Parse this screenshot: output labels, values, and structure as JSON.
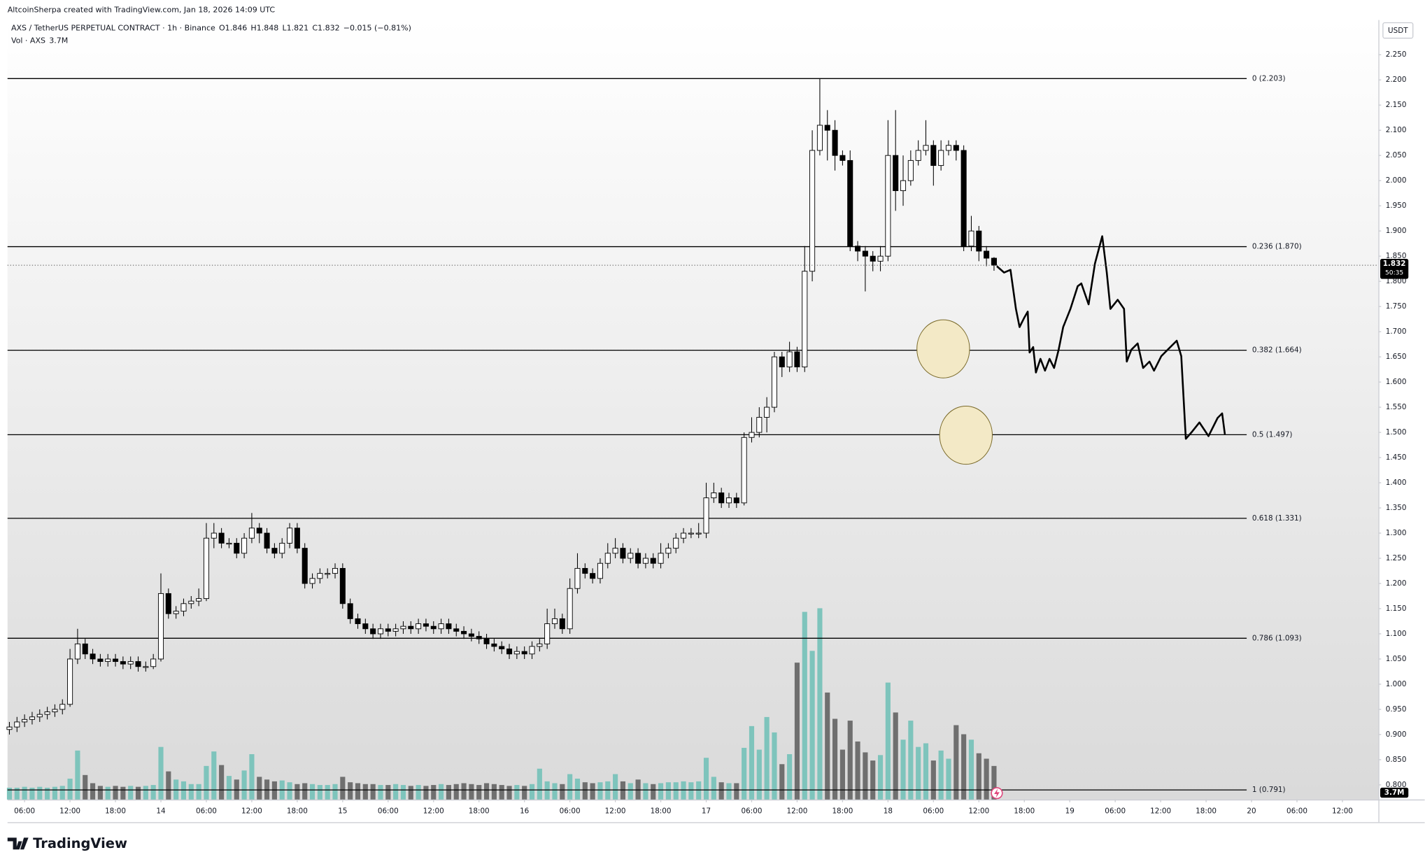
{
  "credit": "AltcoinSherpa created with TradingView.com, Jan 18, 2026 14:09 UTC",
  "brand": "TradingView",
  "chart_data": {
    "type": "candlestick",
    "title": "AXS / TetherUS PERPETUAL CONTRACT · 1h · Binance",
    "ohlc_prefixes": [
      "O",
      "H",
      "L",
      "C"
    ],
    "change": "−0.015 (−0.81%)",
    "volume_title": "Vol · AXS",
    "last_volume_label": "3.7M",
    "currency": "USDT",
    "countdown": "50:35",
    "up_color": "#ffffff",
    "down_color": "#000000",
    "outline_color": "#000000",
    "volume_up_color": "#7ec4bc",
    "volume_down_color": "#6f6f6f",
    "x": [
      "13 04:00",
      "13 05:00",
      "13 06:00",
      "13 07:00",
      "13 08:00",
      "13 09:00",
      "13 10:00",
      "13 11:00",
      "13 12:00",
      "13 13:00",
      "13 14:00",
      "13 15:00",
      "13 16:00",
      "13 17:00",
      "13 18:00",
      "13 19:00",
      "13 20:00",
      "13 21:00",
      "13 22:00",
      "13 23:00",
      "14 00:00",
      "14 01:00",
      "14 02:00",
      "14 03:00",
      "14 04:00",
      "14 05:00",
      "14 06:00",
      "14 07:00",
      "14 08:00",
      "14 09:00",
      "14 10:00",
      "14 11:00",
      "14 12:00",
      "14 13:00",
      "14 14:00",
      "14 15:00",
      "14 16:00",
      "14 17:00",
      "14 18:00",
      "14 19:00",
      "14 20:00",
      "14 21:00",
      "14 22:00",
      "14 23:00",
      "15 00:00",
      "15 01:00",
      "15 02:00",
      "15 03:00",
      "15 04:00",
      "15 05:00",
      "15 06:00",
      "15 07:00",
      "15 08:00",
      "15 09:00",
      "15 10:00",
      "15 11:00",
      "15 12:00",
      "15 13:00",
      "15 14:00",
      "15 15:00",
      "15 16:00",
      "15 17:00",
      "15 18:00",
      "15 19:00",
      "15 20:00",
      "15 21:00",
      "15 22:00",
      "15 23:00",
      "16 00:00",
      "16 01:00",
      "16 02:00",
      "16 03:00",
      "16 04:00",
      "16 05:00",
      "16 06:00",
      "16 07:00",
      "16 08:00",
      "16 09:00",
      "16 10:00",
      "16 11:00",
      "16 12:00",
      "16 13:00",
      "16 14:00",
      "16 15:00",
      "16 16:00",
      "16 17:00",
      "16 18:00",
      "16 19:00",
      "16 20:00",
      "16 21:00",
      "16 22:00",
      "16 23:00",
      "17 00:00",
      "17 01:00",
      "17 02:00",
      "17 03:00",
      "17 04:00",
      "17 05:00",
      "17 06:00",
      "17 07:00",
      "17 08:00",
      "17 09:00",
      "17 10:00",
      "17 11:00",
      "17 12:00",
      "17 13:00",
      "17 14:00",
      "17 15:00",
      "17 16:00",
      "17 17:00",
      "17 18:00",
      "17 19:00",
      "17 20:00",
      "17 21:00",
      "17 22:00",
      "17 23:00",
      "18 00:00",
      "18 01:00",
      "18 02:00",
      "18 03:00",
      "18 04:00",
      "18 05:00",
      "18 06:00",
      "18 07:00",
      "18 08:00",
      "18 09:00",
      "18 10:00",
      "18 11:00",
      "18 12:00",
      "18 13:00",
      "18 14:00"
    ],
    "open": [
      0.91,
      0.915,
      0.925,
      0.93,
      0.935,
      0.94,
      0.945,
      0.95,
      0.96,
      1.05,
      1.08,
      1.06,
      1.05,
      1.045,
      1.05,
      1.045,
      1.04,
      1.045,
      1.035,
      1.035,
      1.05,
      1.18,
      1.14,
      1.145,
      1.16,
      1.165,
      1.17,
      1.29,
      1.3,
      1.28,
      1.28,
      1.26,
      1.29,
      1.31,
      1.3,
      1.27,
      1.26,
      1.28,
      1.31,
      1.27,
      1.2,
      1.21,
      1.22,
      1.22,
      1.23,
      1.16,
      1.13,
      1.12,
      1.11,
      1.1,
      1.11,
      1.105,
      1.11,
      1.115,
      1.11,
      1.12,
      1.115,
      1.11,
      1.12,
      1.11,
      1.105,
      1.1,
      1.095,
      1.09,
      1.08,
      1.075,
      1.07,
      1.06,
      1.065,
      1.06,
      1.075,
      1.08,
      1.12,
      1.13,
      1.11,
      1.19,
      1.23,
      1.22,
      1.21,
      1.24,
      1.26,
      1.27,
      1.25,
      1.26,
      1.24,
      1.25,
      1.24,
      1.26,
      1.27,
      1.29,
      1.3,
      1.3,
      1.3,
      1.37,
      1.38,
      1.36,
      1.37,
      1.36,
      1.49,
      1.5,
      1.53,
      1.55,
      1.65,
      1.63,
      1.66,
      1.63,
      1.82,
      2.06,
      2.11,
      2.1,
      2.05,
      2.04,
      1.87,
      1.86,
      1.85,
      1.84,
      1.85,
      2.05,
      1.98,
      2.0,
      2.04,
      2.06,
      2.07,
      2.03,
      2.06,
      2.07,
      2.06,
      1.87,
      1.9,
      1.86,
      1.846
    ],
    "high": [
      0.925,
      0.935,
      0.94,
      0.945,
      0.95,
      0.955,
      0.96,
      0.97,
      1.07,
      1.11,
      1.09,
      1.07,
      1.06,
      1.06,
      1.06,
      1.055,
      1.055,
      1.055,
      1.045,
      1.06,
      1.22,
      1.19,
      1.155,
      1.17,
      1.175,
      1.19,
      1.32,
      1.32,
      1.31,
      1.29,
      1.29,
      1.3,
      1.34,
      1.32,
      1.31,
      1.28,
      1.29,
      1.32,
      1.32,
      1.28,
      1.22,
      1.23,
      1.23,
      1.24,
      1.24,
      1.17,
      1.14,
      1.13,
      1.12,
      1.12,
      1.12,
      1.12,
      1.125,
      1.125,
      1.13,
      1.13,
      1.125,
      1.13,
      1.13,
      1.12,
      1.115,
      1.11,
      1.105,
      1.1,
      1.09,
      1.085,
      1.08,
      1.075,
      1.075,
      1.085,
      1.09,
      1.15,
      1.15,
      1.14,
      1.21,
      1.26,
      1.24,
      1.23,
      1.25,
      1.28,
      1.29,
      1.28,
      1.27,
      1.27,
      1.26,
      1.26,
      1.28,
      1.28,
      1.3,
      1.31,
      1.31,
      1.32,
      1.4,
      1.4,
      1.39,
      1.38,
      1.38,
      1.5,
      1.53,
      1.55,
      1.57,
      1.66,
      1.66,
      1.68,
      1.67,
      1.87,
      2.1,
      2.203,
      2.14,
      2.12,
      2.06,
      2.06,
      1.88,
      1.87,
      1.86,
      1.87,
      2.12,
      2.14,
      2.05,
      2.06,
      2.08,
      2.12,
      2.08,
      2.08,
      2.08,
      2.08,
      2.07,
      1.93,
      1.91,
      1.87,
      1.848
    ],
    "low": [
      0.9,
      0.905,
      0.915,
      0.92,
      0.925,
      0.93,
      0.935,
      0.94,
      0.955,
      1.04,
      1.05,
      1.04,
      1.035,
      1.035,
      1.035,
      1.03,
      1.03,
      1.025,
      1.025,
      1.03,
      1.045,
      1.13,
      1.13,
      1.135,
      1.15,
      1.155,
      1.165,
      1.27,
      1.27,
      1.27,
      1.25,
      1.25,
      1.28,
      1.28,
      1.26,
      1.25,
      1.25,
      1.27,
      1.26,
      1.19,
      1.19,
      1.2,
      1.21,
      1.21,
      1.15,
      1.12,
      1.11,
      1.1,
      1.09,
      1.09,
      1.095,
      1.095,
      1.1,
      1.1,
      1.1,
      1.105,
      1.1,
      1.1,
      1.1,
      1.095,
      1.09,
      1.085,
      1.08,
      1.07,
      1.065,
      1.06,
      1.05,
      1.05,
      1.05,
      1.05,
      1.065,
      1.07,
      1.11,
      1.1,
      1.1,
      1.18,
      1.21,
      1.2,
      1.2,
      1.23,
      1.25,
      1.24,
      1.24,
      1.23,
      1.23,
      1.23,
      1.23,
      1.25,
      1.26,
      1.28,
      1.29,
      1.29,
      1.29,
      1.36,
      1.35,
      1.35,
      1.35,
      1.355,
      1.48,
      1.49,
      1.5,
      1.54,
      1.61,
      1.62,
      1.62,
      1.62,
      1.8,
      2.05,
      2.04,
      2.02,
      2.03,
      1.86,
      1.84,
      1.78,
      1.82,
      1.82,
      1.84,
      1.94,
      1.95,
      1.99,
      2.03,
      2.05,
      1.99,
      2.02,
      2.05,
      2.04,
      1.86,
      1.86,
      1.84,
      1.83,
      1.821
    ],
    "close": [
      0.915,
      0.925,
      0.93,
      0.935,
      0.94,
      0.945,
      0.95,
      0.96,
      1.05,
      1.08,
      1.06,
      1.05,
      1.045,
      1.05,
      1.045,
      1.04,
      1.045,
      1.035,
      1.035,
      1.05,
      1.18,
      1.14,
      1.145,
      1.16,
      1.165,
      1.17,
      1.29,
      1.3,
      1.28,
      1.28,
      1.26,
      1.29,
      1.31,
      1.3,
      1.27,
      1.26,
      1.28,
      1.31,
      1.27,
      1.2,
      1.21,
      1.22,
      1.22,
      1.23,
      1.16,
      1.13,
      1.12,
      1.11,
      1.1,
      1.11,
      1.105,
      1.11,
      1.115,
      1.11,
      1.12,
      1.115,
      1.11,
      1.12,
      1.11,
      1.105,
      1.1,
      1.095,
      1.09,
      1.08,
      1.075,
      1.07,
      1.06,
      1.065,
      1.06,
      1.075,
      1.08,
      1.12,
      1.13,
      1.11,
      1.19,
      1.23,
      1.22,
      1.21,
      1.24,
      1.26,
      1.27,
      1.25,
      1.26,
      1.24,
      1.25,
      1.24,
      1.26,
      1.27,
      1.29,
      1.3,
      1.3,
      1.3,
      1.37,
      1.38,
      1.36,
      1.37,
      1.36,
      1.49,
      1.5,
      1.53,
      1.55,
      1.65,
      1.63,
      1.66,
      1.63,
      1.82,
      2.06,
      2.11,
      2.1,
      2.05,
      2.04,
      1.87,
      1.86,
      1.85,
      1.84,
      1.85,
      2.05,
      1.98,
      2.0,
      2.04,
      2.06,
      2.07,
      2.03,
      2.06,
      2.07,
      2.06,
      1.87,
      1.9,
      1.86,
      1.846,
      1.832
    ],
    "volume": [
      1.3,
      1.3,
      1.4,
      1.3,
      1.4,
      1.3,
      1.4,
      1.5,
      2.3,
      5.4,
      2.7,
      1.8,
      1.5,
      1.4,
      1.5,
      1.4,
      1.5,
      1.4,
      1.5,
      1.6,
      5.8,
      3.1,
      2.2,
      2.0,
      1.7,
      1.7,
      3.7,
      5.3,
      3.8,
      2.6,
      2.2,
      3.2,
      5.0,
      2.5,
      2.2,
      2.0,
      2.1,
      1.9,
      1.7,
      1.8,
      1.7,
      1.6,
      1.6,
      1.7,
      2.5,
      1.9,
      1.8,
      1.7,
      1.7,
      1.6,
      1.6,
      1.7,
      1.6,
      1.5,
      1.6,
      1.5,
      1.6,
      1.7,
      1.6,
      1.7,
      1.8,
      1.7,
      1.6,
      1.8,
      1.7,
      1.6,
      1.5,
      1.6,
      1.5,
      1.7,
      3.4,
      2.0,
      1.8,
      1.7,
      2.8,
      2.3,
      1.9,
      1.8,
      1.9,
      2.0,
      2.8,
      2.0,
      1.8,
      2.2,
      1.8,
      1.7,
      1.8,
      1.9,
      1.9,
      2.0,
      1.9,
      2.0,
      4.6,
      2.5,
      1.9,
      1.8,
      1.8,
      5.7,
      8.1,
      5.5,
      9.1,
      7.4,
      3.9,
      5.0,
      15.1,
      20.7,
      16.4,
      21.1,
      11.8,
      8.9,
      5.5,
      8.7,
      6.4,
      5.2,
      4.3,
      4.9,
      12.9,
      9.6,
      6.6,
      8.7,
      5.8,
      6.2,
      4.3,
      5.4,
      4.5,
      8.2,
      7.2,
      6.6,
      5.1,
      4.5,
      3.7
    ],
    "xlim": [
      "13 03:45",
      "20 16:45"
    ],
    "xticks": [
      {
        "value": "13 06:00",
        "label": "06:00"
      },
      {
        "value": "13 12:00",
        "label": "12:00"
      },
      {
        "value": "13 18:00",
        "label": "18:00"
      },
      {
        "value": "14 00:00",
        "label": "14"
      },
      {
        "value": "14 06:00",
        "label": "06:00"
      },
      {
        "value": "14 12:00",
        "label": "12:00"
      },
      {
        "value": "14 18:00",
        "label": "18:00"
      },
      {
        "value": "15 00:00",
        "label": "15"
      },
      {
        "value": "15 06:00",
        "label": "06:00"
      },
      {
        "value": "15 12:00",
        "label": "12:00"
      },
      {
        "value": "15 18:00",
        "label": "18:00"
      },
      {
        "value": "16 00:00",
        "label": "16"
      },
      {
        "value": "16 06:00",
        "label": "06:00"
      },
      {
        "value": "16 12:00",
        "label": "12:00"
      },
      {
        "value": "16 18:00",
        "label": "18:00"
      },
      {
        "value": "17 00:00",
        "label": "17"
      },
      {
        "value": "17 06:00",
        "label": "06:00"
      },
      {
        "value": "17 12:00",
        "label": "12:00"
      },
      {
        "value": "17 18:00",
        "label": "18:00"
      },
      {
        "value": "18 00:00",
        "label": "18"
      },
      {
        "value": "18 06:00",
        "label": "06:00"
      },
      {
        "value": "18 12:00",
        "label": "12:00"
      },
      {
        "value": "18 18:00",
        "label": "18:00"
      },
      {
        "value": "19 00:00",
        "label": "19"
      },
      {
        "value": "19 06:00",
        "label": "06:00"
      },
      {
        "value": "19 12:00",
        "label": "12:00"
      },
      {
        "value": "19 18:00",
        "label": "18:00"
      },
      {
        "value": "20 00:00",
        "label": "20"
      },
      {
        "value": "20 06:00",
        "label": "06:00"
      },
      {
        "value": "20 12:00",
        "label": "12:00"
      }
    ],
    "ylim": [
      0.771,
      2.319
    ],
    "yticks": [
      {
        "value": 0.8,
        "label": "0.800"
      },
      {
        "value": 0.85,
        "label": "0.850"
      },
      {
        "value": 0.9,
        "label": "0.900"
      },
      {
        "value": 0.95,
        "label": "0.950"
      },
      {
        "value": 1.0,
        "label": "1.000"
      },
      {
        "value": 1.05,
        "label": "1.050"
      },
      {
        "value": 1.1,
        "label": "1.100"
      },
      {
        "value": 1.15,
        "label": "1.150"
      },
      {
        "value": 1.2,
        "label": "1.200"
      },
      {
        "value": 1.25,
        "label": "1.250"
      },
      {
        "value": 1.3,
        "label": "1.300"
      },
      {
        "value": 1.35,
        "label": "1.350"
      },
      {
        "value": 1.4,
        "label": "1.400"
      },
      {
        "value": 1.45,
        "label": "1.450"
      },
      {
        "value": 1.5,
        "label": "1.500"
      },
      {
        "value": 1.55,
        "label": "1.550"
      },
      {
        "value": 1.6,
        "label": "1.600"
      },
      {
        "value": 1.65,
        "label": "1.650"
      },
      {
        "value": 1.7,
        "label": "1.700"
      },
      {
        "value": 1.75,
        "label": "1.750"
      },
      {
        "value": 1.8,
        "label": "1.800"
      },
      {
        "value": 1.85,
        "label": "1.850"
      },
      {
        "value": 1.9,
        "label": "1.900"
      },
      {
        "value": 1.95,
        "label": "1.950"
      },
      {
        "value": 2.0,
        "label": "2.000"
      },
      {
        "value": 2.05,
        "label": "2.050"
      },
      {
        "value": 2.1,
        "label": "2.100"
      },
      {
        "value": 2.15,
        "label": "2.150"
      },
      {
        "value": 2.2,
        "label": "2.200"
      },
      {
        "value": 2.25,
        "label": "2.250"
      }
    ],
    "y2lim": [
      0,
      86
    ],
    "fib_levels": [
      {
        "value": 2.203,
        "label": "0 (2.203)"
      },
      {
        "value": 1.87,
        "label": "0.236 (1.870)"
      },
      {
        "value": 1.664,
        "label": "0.382 (1.664)"
      },
      {
        "value": 1.497,
        "label": "0.5 (1.497)"
      },
      {
        "value": 1.331,
        "label": "0.618 (1.331)"
      },
      {
        "value": 1.093,
        "label": "0.786 (1.093)"
      },
      {
        "value": 0.791,
        "label": "1 (0.791)"
      }
    ]
  }
}
